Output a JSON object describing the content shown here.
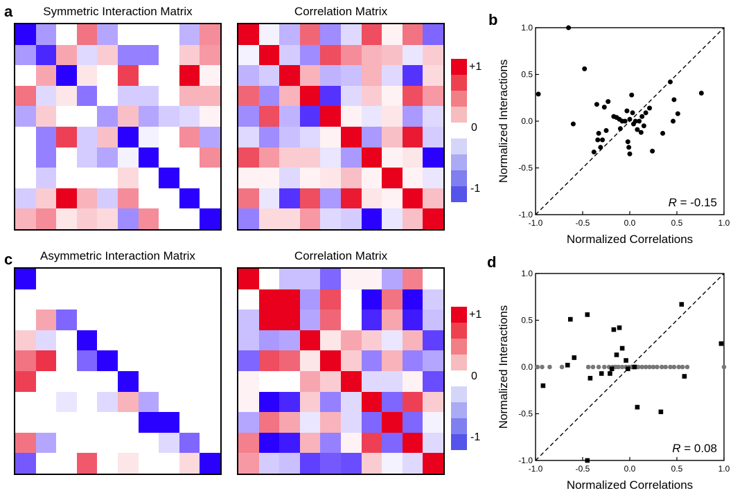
{
  "panel_labels": {
    "a": "a",
    "b": "b",
    "c": "c",
    "d": "d"
  },
  "colorbar": {
    "colors": [
      "#e8001c",
      "#ed4150",
      "#f27e86",
      "#f7bcbe",
      "#ffffff",
      "#d5d5fa",
      "#aaaaf5",
      "#7f7ff0",
      "#5555eb"
    ],
    "labels": {
      "top": "+1",
      "mid": "0",
      "bottom": "-1"
    }
  },
  "chart_data": [
    {
      "type": "heatmap",
      "title": "Symmetric Interaction Matrix",
      "range": [
        -1,
        1
      ],
      "values": [
        [
          -1.0,
          -0.4,
          0,
          0.55,
          -0.35,
          0,
          0,
          0,
          -0.3,
          0.45
        ],
        [
          -0.4,
          -0.85,
          0.35,
          -0.15,
          0.2,
          -0.5,
          -0.5,
          0,
          0.2,
          0.4
        ],
        [
          0,
          0.35,
          -1.0,
          0.1,
          0,
          0.75,
          0,
          0,
          1.0,
          0.05
        ],
        [
          0.55,
          -0.15,
          0.1,
          -0.55,
          0,
          -0.2,
          -0.2,
          0,
          0.3,
          0.3
        ],
        [
          -0.35,
          0.2,
          0,
          0,
          -0.4,
          0.25,
          -0.35,
          -0.2,
          -0.15,
          0.05
        ],
        [
          0,
          -0.5,
          0.75,
          -0.2,
          0.25,
          -1.0,
          -0.05,
          0,
          0.45,
          -0.35
        ],
        [
          0,
          -0.5,
          0,
          -0.2,
          -0.35,
          -0.05,
          -1.0,
          0,
          0,
          0.45
        ],
        [
          0,
          -0.2,
          0,
          0,
          0,
          0.15,
          0,
          -1.0,
          0,
          0
        ],
        [
          -0.2,
          0.2,
          1.0,
          0.3,
          -0.2,
          0.45,
          0,
          0,
          -1.0,
          0
        ],
        [
          0.3,
          0.45,
          0.1,
          0.2,
          0.15,
          -0.45,
          0.45,
          0,
          0,
          -1.0
        ]
      ]
    },
    {
      "type": "heatmap",
      "title": "Correlation Matrix",
      "range": [
        -1,
        1
      ],
      "values": [
        [
          1.0,
          -0.05,
          -0.3,
          0.6,
          -0.45,
          -0.15,
          0.7,
          0.05,
          0.55,
          -0.6
        ],
        [
          -0.05,
          1.0,
          -0.2,
          -0.45,
          0.7,
          0.45,
          0.3,
          0.25,
          -0.1,
          0.2
        ],
        [
          -0.3,
          -0.2,
          1.0,
          0.3,
          -0.3,
          -0.25,
          0.3,
          -0.15,
          -0.8,
          0.15
        ],
        [
          0.6,
          -0.45,
          0.3,
          1.0,
          -0.8,
          -0.15,
          0.2,
          0.05,
          0.7,
          0.4
        ],
        [
          -0.45,
          0.7,
          -0.3,
          -0.8,
          1.0,
          0.05,
          -0.1,
          0.1,
          -0.4,
          -0.15
        ],
        [
          -0.15,
          -0.45,
          -0.25,
          -0.15,
          0.05,
          1.0,
          -0.4,
          0.25,
          0.9,
          -0.2
        ],
        [
          0.7,
          0.4,
          0.2,
          0.2,
          -0.1,
          -0.4,
          1.0,
          0.05,
          0.1,
          -1.0
        ],
        [
          0.05,
          0.05,
          -0.15,
          0.05,
          0.1,
          0.25,
          0.05,
          1.0,
          0.05,
          -0.1
        ],
        [
          0.55,
          -0.1,
          -0.8,
          0.7,
          -0.4,
          0.9,
          0.1,
          0.05,
          1.0,
          0.25
        ],
        [
          -0.5,
          0.15,
          0.15,
          0.4,
          -0.15,
          -0.2,
          -1.0,
          -0.1,
          0.25,
          1.0
        ]
      ]
    },
    {
      "type": "scatter",
      "xlabel": "Normalized Correlations",
      "ylabel": "Normalized Interactions",
      "xlim": [
        -1.0,
        1.0
      ],
      "ylim": [
        -1.0,
        1.0
      ],
      "xticks": [
        "-1.0",
        "-0.5",
        "0.0",
        "0.5",
        "1.0"
      ],
      "yticks": [
        "-1.0",
        "-0.5",
        "0.0",
        "0.5",
        "1.0"
      ],
      "annotation": {
        "var": "R",
        "text": " = -0.15"
      },
      "points": [
        [
          -0.65,
          1.0
        ],
        [
          -0.97,
          0.29
        ],
        [
          -0.48,
          0.56
        ],
        [
          -0.6,
          -0.03
        ],
        [
          -0.35,
          0.18
        ],
        [
          -0.23,
          0.21
        ],
        [
          -0.27,
          0.15
        ],
        [
          -0.33,
          -0.13
        ],
        [
          -0.25,
          -0.1
        ],
        [
          -0.29,
          -0.2
        ],
        [
          -0.34,
          -0.2
        ],
        [
          -0.38,
          -0.33
        ],
        [
          -0.31,
          -0.28
        ],
        [
          -0.17,
          0.05
        ],
        [
          -0.14,
          0.04
        ],
        [
          -0.11,
          0.02
        ],
        [
          -0.1,
          -0.08
        ],
        [
          -0.08,
          0.0
        ],
        [
          -0.05,
          0.0
        ],
        [
          -0.03,
          0.11
        ],
        [
          0.02,
          0.28
        ],
        [
          0.03,
          0.09
        ],
        [
          0.06,
          0.0
        ],
        [
          0.1,
          0.0
        ],
        [
          0.13,
          0.05
        ],
        [
          0.17,
          0.09
        ],
        [
          0.21,
          0.14
        ],
        [
          0.04,
          -0.03
        ],
        [
          0.08,
          -0.09
        ],
        [
          0.12,
          -0.12
        ],
        [
          0.15,
          -0.05
        ],
        [
          -0.02,
          -0.22
        ],
        [
          -0.01,
          -0.28
        ],
        [
          0.0,
          -0.35
        ],
        [
          0.24,
          -0.32
        ],
        [
          0.43,
          0.42
        ],
        [
          0.47,
          0.23
        ],
        [
          0.51,
          0.08
        ],
        [
          0.46,
          0.0
        ],
        [
          0.35,
          -0.13
        ],
        [
          0.76,
          0.3
        ],
        [
          0.0,
          0.02
        ]
      ]
    },
    {
      "type": "heatmap",
      "title": "Asymmetric Interaction Matrix",
      "range": [
        -1,
        1
      ],
      "values": [
        [
          -1.0,
          0,
          0,
          0,
          0,
          0,
          0,
          0,
          0,
          0
        ],
        [
          0,
          0,
          0,
          0,
          0,
          0,
          0,
          0,
          0,
          0
        ],
        [
          0,
          0.35,
          -0.6,
          0,
          0,
          0,
          0,
          0,
          0,
          0
        ],
        [
          0.2,
          -0.15,
          0,
          -1.0,
          0,
          0,
          0,
          0,
          0,
          0
        ],
        [
          0.55,
          0.8,
          0,
          -0.6,
          -1.0,
          0,
          0,
          0,
          0,
          0
        ],
        [
          0.75,
          0,
          0,
          0,
          0,
          -1.0,
          0,
          0,
          0,
          0
        ],
        [
          0,
          0,
          -0.1,
          0,
          -0.15,
          0.3,
          -0.35,
          0,
          0,
          0
        ],
        [
          0,
          0,
          0,
          0,
          0,
          0,
          -1.0,
          -1.0,
          0,
          0
        ],
        [
          0.55,
          -0.35,
          0,
          0,
          0,
          0,
          0,
          -0.15,
          -0.6,
          0
        ],
        [
          -0.65,
          0,
          0,
          0.65,
          0,
          0.1,
          0,
          0,
          0.15,
          -1.0
        ]
      ]
    },
    {
      "type": "heatmap",
      "title": "Correlation Matrix",
      "range": [
        -1,
        1
      ],
      "values": [
        [
          1.0,
          0,
          -0.25,
          -0.25,
          -0.6,
          0.05,
          0.05,
          -0.35,
          0.5,
          0
        ],
        [
          0,
          1.0,
          1.0,
          -0.4,
          0.7,
          0,
          -1.0,
          0.55,
          -1.0,
          -0.2
        ],
        [
          -0.25,
          1.0,
          1.0,
          -0.35,
          0.6,
          0,
          -0.85,
          0.35,
          -0.9,
          -0.25
        ],
        [
          -0.25,
          -0.4,
          -0.35,
          1.0,
          0.1,
          0.35,
          0.2,
          -0.1,
          0.3,
          -0.75
        ],
        [
          -0.6,
          0.7,
          0.6,
          0.1,
          1.0,
          0.2,
          -0.5,
          0.3,
          -0.5,
          -0.35
        ],
        [
          0.05,
          0,
          0,
          0.35,
          0.2,
          1.0,
          -0.15,
          -0.15,
          0.05,
          -0.7
        ],
        [
          0.05,
          -1.0,
          -0.85,
          0.2,
          -0.5,
          -0.15,
          1.0,
          -0.6,
          0.75,
          0.2
        ],
        [
          -0.35,
          0.55,
          0.35,
          -0.1,
          0.3,
          -0.15,
          -0.6,
          1.0,
          -0.6,
          -0.05
        ],
        [
          0.5,
          -1.0,
          -0.9,
          0.3,
          -0.5,
          0.05,
          0.75,
          -0.6,
          1.0,
          -0.15
        ],
        [
          0.4,
          -0.2,
          -0.25,
          -0.75,
          -0.65,
          -0.7,
          0.2,
          -0.05,
          -0.15,
          1.0
        ]
      ]
    },
    {
      "type": "scatter",
      "xlabel": "Normalized Correlations",
      "ylabel": "Normalized Interactions",
      "xlim": [
        -1.0,
        1.0
      ],
      "ylim": [
        -1.0,
        1.0
      ],
      "xticks": [
        "-1.0",
        "-0.5",
        "0.0",
        "0.5",
        "1.0"
      ],
      "yticks": [
        "-1.0",
        "-0.5",
        "0.0",
        "0.5",
        "1.0"
      ],
      "annotation": {
        "var": "R",
        "text": " = 0.08"
      },
      "square_points": [
        [
          -0.92,
          -0.2
        ],
        [
          -0.66,
          0.02
        ],
        [
          -0.59,
          0.1
        ],
        [
          -0.63,
          0.51
        ],
        [
          -0.45,
          0.56
        ],
        [
          -0.42,
          -0.12
        ],
        [
          -0.3,
          -0.07
        ],
        [
          -0.17,
          0.4
        ],
        [
          -0.14,
          0.13
        ],
        [
          -0.11,
          0.42
        ],
        [
          -0.08,
          0.2
        ],
        [
          -0.04,
          0.07
        ],
        [
          -0.19,
          -0.02
        ],
        [
          -0.21,
          -0.07
        ],
        [
          -0.02,
          -0.02
        ],
        [
          0.05,
          0.0
        ],
        [
          0.08,
          -0.43
        ],
        [
          0.33,
          -0.48
        ],
        [
          0.55,
          0.67
        ],
        [
          0.58,
          -0.1
        ],
        [
          0.97,
          0.25
        ],
        [
          -0.45,
          -1.0
        ]
      ],
      "round_points": [
        [
          -0.98,
          0.0
        ],
        [
          -0.93,
          0.0
        ],
        [
          -0.85,
          0.0
        ],
        [
          -0.72,
          0.0
        ],
        [
          -0.44,
          0.0
        ],
        [
          -0.39,
          0.0
        ],
        [
          -0.33,
          0.0
        ],
        [
          -0.27,
          0.0
        ],
        [
          -0.22,
          0.0
        ],
        [
          -0.18,
          0.0
        ],
        [
          -0.15,
          0.0
        ],
        [
          -0.12,
          0.0
        ],
        [
          -0.08,
          0.0
        ],
        [
          -0.04,
          0.0
        ],
        [
          -0.01,
          0.0
        ],
        [
          0.02,
          0.0
        ],
        [
          0.05,
          0.0
        ],
        [
          0.09,
          0.0
        ],
        [
          0.13,
          0.0
        ],
        [
          0.17,
          0.0
        ],
        [
          0.21,
          0.0
        ],
        [
          0.25,
          0.0
        ],
        [
          0.29,
          0.0
        ],
        [
          0.34,
          0.0
        ],
        [
          0.38,
          0.0
        ],
        [
          0.43,
          0.0
        ],
        [
          0.47,
          0.0
        ],
        [
          0.52,
          0.0
        ],
        [
          0.56,
          0.0
        ],
        [
          0.61,
          0.0
        ],
        [
          1.0,
          0.0
        ]
      ]
    }
  ]
}
